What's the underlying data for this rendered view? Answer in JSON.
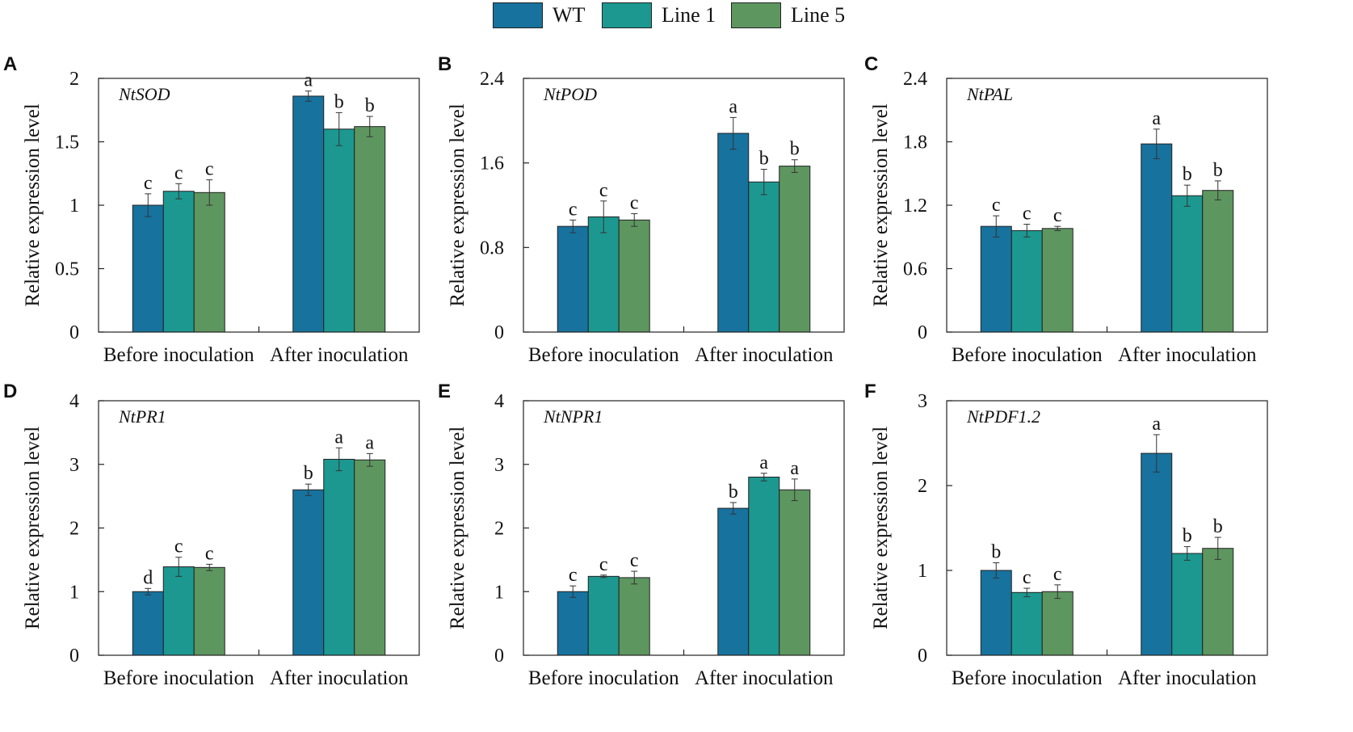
{
  "colors": {
    "WT": "#17729e",
    "Line 1": "#1c9890",
    "Line 5": "#5e9660",
    "axis": "#222222"
  },
  "legend": {
    "items": [
      {
        "label": "WT"
      },
      {
        "label": "Line 1"
      },
      {
        "label": "Line 5"
      }
    ]
  },
  "chart_data": [
    {
      "panel": "A",
      "type": "bar",
      "title": "NtSOD",
      "ylabel": "Relative expression level",
      "categories": [
        "Before inoculation",
        "After inoculation"
      ],
      "ylim": [
        0,
        2
      ],
      "yticks": [
        0,
        0.5,
        1,
        1.5,
        2
      ],
      "ytick_labels": [
        "0",
        "0.5",
        "1",
        "1.5",
        "2"
      ],
      "series": [
        {
          "name": "WT",
          "values": [
            1.0,
            1.86
          ],
          "errors": [
            0.09,
            0.04
          ],
          "letters": [
            "c",
            "a"
          ]
        },
        {
          "name": "Line 1",
          "values": [
            1.11,
            1.6
          ],
          "errors": [
            0.06,
            0.13
          ],
          "letters": [
            "c",
            "b"
          ]
        },
        {
          "name": "Line 5",
          "values": [
            1.1,
            1.62
          ],
          "errors": [
            0.1,
            0.08
          ],
          "letters": [
            "c",
            "b"
          ]
        }
      ]
    },
    {
      "panel": "B",
      "type": "bar",
      "title": "NtPOD",
      "ylabel": "Relative expression level",
      "categories": [
        "Before inoculation",
        "After inoculation"
      ],
      "ylim": [
        0,
        2.4
      ],
      "yticks": [
        0,
        0.8,
        1.6,
        2.4
      ],
      "ytick_labels": [
        "0",
        "0.8",
        "1.6",
        "2.4"
      ],
      "series": [
        {
          "name": "WT",
          "values": [
            1.0,
            1.88
          ],
          "errors": [
            0.06,
            0.15
          ],
          "letters": [
            "c",
            "a"
          ]
        },
        {
          "name": "Line 1",
          "values": [
            1.09,
            1.42
          ],
          "errors": [
            0.15,
            0.12
          ],
          "letters": [
            "c",
            "b"
          ]
        },
        {
          "name": "Line 5",
          "values": [
            1.06,
            1.57
          ],
          "errors": [
            0.06,
            0.06
          ],
          "letters": [
            "c",
            "b"
          ]
        }
      ]
    },
    {
      "panel": "C",
      "type": "bar",
      "title": "NtPAL",
      "ylabel": "Relative expression level",
      "categories": [
        "Before inoculation",
        "After inoculation"
      ],
      "ylim": [
        0,
        2.4
      ],
      "yticks": [
        0,
        0.6,
        1.2,
        1.8,
        2.4
      ],
      "ytick_labels": [
        "0",
        "0.6",
        "1.2",
        "1.8",
        "2.4"
      ],
      "series": [
        {
          "name": "WT",
          "values": [
            1.0,
            1.78
          ],
          "errors": [
            0.1,
            0.14
          ],
          "letters": [
            "c",
            "a"
          ]
        },
        {
          "name": "Line 1",
          "values": [
            0.96,
            1.29
          ],
          "errors": [
            0.06,
            0.1
          ],
          "letters": [
            "c",
            "b"
          ]
        },
        {
          "name": "Line 5",
          "values": [
            0.98,
            1.34
          ],
          "errors": [
            0.02,
            0.09
          ],
          "letters": [
            "c",
            "b"
          ]
        }
      ]
    },
    {
      "panel": "D",
      "type": "bar",
      "title": "NtPR1",
      "ylabel": "Relative expression level",
      "categories": [
        "Before inoculation",
        "After inoculation"
      ],
      "ylim": [
        0,
        4
      ],
      "yticks": [
        0,
        1,
        2,
        3,
        4
      ],
      "ytick_labels": [
        "0",
        "1",
        "2",
        "3",
        "4"
      ],
      "series": [
        {
          "name": "WT",
          "values": [
            1.0,
            2.6
          ],
          "errors": [
            0.05,
            0.09
          ],
          "letters": [
            "d",
            "b"
          ]
        },
        {
          "name": "Line 1",
          "values": [
            1.39,
            3.08
          ],
          "errors": [
            0.15,
            0.18
          ],
          "letters": [
            "c",
            "a"
          ]
        },
        {
          "name": "Line 5",
          "values": [
            1.38,
            3.07
          ],
          "errors": [
            0.05,
            0.1
          ],
          "letters": [
            "c",
            "a"
          ]
        }
      ]
    },
    {
      "panel": "E",
      "type": "bar",
      "title": "NtNPR1",
      "ylabel": "Relative expression level",
      "categories": [
        "Before inoculation",
        "After inoculation"
      ],
      "ylim": [
        0,
        4
      ],
      "yticks": [
        0,
        1,
        2,
        3,
        4
      ],
      "ytick_labels": [
        "0",
        "1",
        "2",
        "3",
        "4"
      ],
      "series": [
        {
          "name": "WT",
          "values": [
            1.0,
            2.31
          ],
          "errors": [
            0.09,
            0.09
          ],
          "letters": [
            "c",
            "b"
          ]
        },
        {
          "name": "Line 1",
          "values": [
            1.24,
            2.8
          ],
          "errors": [
            0.02,
            0.06
          ],
          "letters": [
            "c",
            "a"
          ]
        },
        {
          "name": "Line 5",
          "values": [
            1.22,
            2.6
          ],
          "errors": [
            0.1,
            0.17
          ],
          "letters": [
            "c",
            "a"
          ]
        }
      ]
    },
    {
      "panel": "F",
      "type": "bar",
      "title": "NtPDF1.2",
      "ylabel": "Relative expression level",
      "categories": [
        "Before inoculation",
        "After inoculation"
      ],
      "ylim": [
        0,
        3
      ],
      "yticks": [
        0,
        1,
        2,
        3
      ],
      "ytick_labels": [
        "0",
        "1",
        "2",
        "3"
      ],
      "series": [
        {
          "name": "WT",
          "values": [
            1.0,
            2.38
          ],
          "errors": [
            0.09,
            0.22
          ],
          "letters": [
            "b",
            "a"
          ]
        },
        {
          "name": "Line 1",
          "values": [
            0.74,
            1.2
          ],
          "errors": [
            0.05,
            0.08
          ],
          "letters": [
            "c",
            "b"
          ]
        },
        {
          "name": "Line 5",
          "values": [
            0.75,
            1.26
          ],
          "errors": [
            0.08,
            0.13
          ],
          "letters": [
            "c",
            "b"
          ]
        }
      ]
    }
  ]
}
